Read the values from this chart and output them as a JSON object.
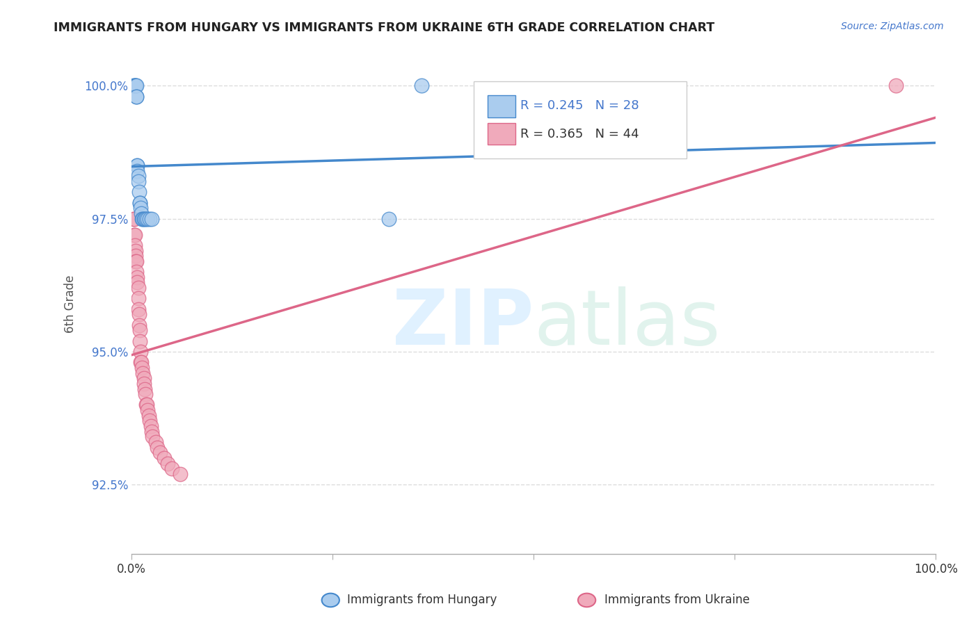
{
  "title": "IMMIGRANTS FROM HUNGARY VS IMMIGRANTS FROM UKRAINE 6TH GRADE CORRELATION CHART",
  "source": "Source: ZipAtlas.com",
  "ylabel": "6th Grade",
  "xlim": [
    0.0,
    1.0
  ],
  "ylim": [
    0.912,
    1.006
  ],
  "ytick_labels": [
    "92.5%",
    "95.0%",
    "97.5%",
    "100.0%"
  ],
  "ytick_values": [
    0.925,
    0.95,
    0.975,
    1.0
  ],
  "xtick_labels": [
    "0.0%",
    "",
    "",
    "",
    "100.0%"
  ],
  "xtick_values": [
    0.0,
    0.25,
    0.5,
    0.75,
    1.0
  ],
  "R_hungary": 0.245,
  "N_hungary": 28,
  "R_ukraine": 0.365,
  "N_ukraine": 44,
  "color_hungary": "#aaccee",
  "color_ukraine": "#f0aabb",
  "line_color_hungary": "#4488cc",
  "line_color_ukraine": "#dd6688",
  "hungary_x": [
    0.002,
    0.003,
    0.004,
    0.005,
    0.005,
    0.006,
    0.006,
    0.006,
    0.007,
    0.007,
    0.007,
    0.008,
    0.008,
    0.009,
    0.01,
    0.01,
    0.011,
    0.012,
    0.013,
    0.014,
    0.015,
    0.016,
    0.018,
    0.02,
    0.022,
    0.025,
    0.32,
    0.36
  ],
  "hungary_y": [
    1.0,
    1.0,
    1.0,
    1.0,
    1.0,
    1.0,
    0.998,
    0.998,
    0.985,
    0.985,
    0.984,
    0.983,
    0.982,
    0.98,
    0.978,
    0.978,
    0.977,
    0.976,
    0.975,
    0.975,
    0.975,
    0.975,
    0.975,
    0.975,
    0.975,
    0.975,
    0.975,
    1.0
  ],
  "ukraine_x": [
    0.002,
    0.003,
    0.003,
    0.004,
    0.004,
    0.005,
    0.005,
    0.005,
    0.006,
    0.006,
    0.007,
    0.007,
    0.008,
    0.008,
    0.008,
    0.009,
    0.009,
    0.01,
    0.01,
    0.011,
    0.011,
    0.012,
    0.013,
    0.014,
    0.015,
    0.015,
    0.016,
    0.017,
    0.018,
    0.019,
    0.02,
    0.021,
    0.022,
    0.024,
    0.025,
    0.026,
    0.03,
    0.032,
    0.035,
    0.04,
    0.045,
    0.05,
    0.06,
    0.95
  ],
  "ukraine_y": [
    0.975,
    0.975,
    0.972,
    0.972,
    0.97,
    0.969,
    0.968,
    0.967,
    0.967,
    0.965,
    0.964,
    0.963,
    0.962,
    0.96,
    0.958,
    0.957,
    0.955,
    0.954,
    0.952,
    0.95,
    0.948,
    0.948,
    0.947,
    0.946,
    0.945,
    0.944,
    0.943,
    0.942,
    0.94,
    0.94,
    0.939,
    0.938,
    0.937,
    0.936,
    0.935,
    0.934,
    0.933,
    0.932,
    0.931,
    0.93,
    0.929,
    0.928,
    0.927,
    1.0
  ],
  "background_color": "#ffffff",
  "grid_color": "#dddddd",
  "title_color": "#222222",
  "source_color": "#4477cc",
  "axis_label_color": "#4477cc"
}
